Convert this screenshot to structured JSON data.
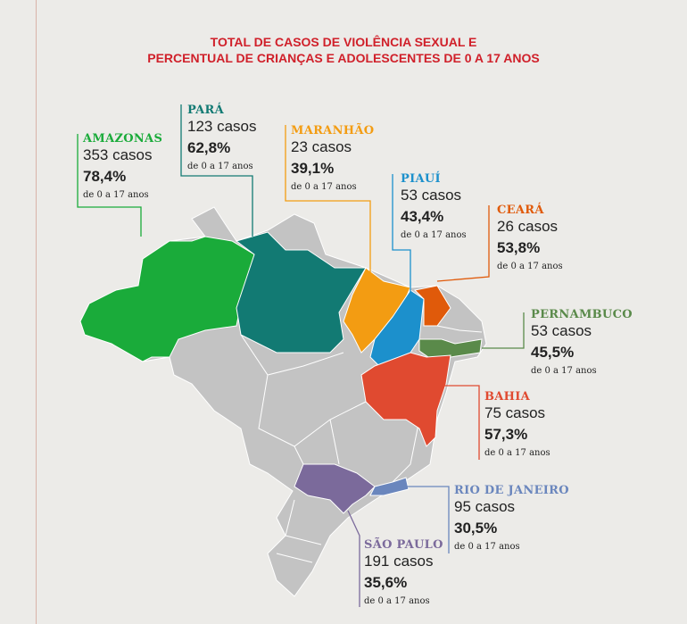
{
  "title": {
    "line1": "TOTAL DE CASOS DE VIOLÊNCIA SEXUAL E",
    "line2": "PERCENTUAL DE CRIANÇAS E ADOLESCENTES DE 0 A 17 ANOS"
  },
  "colors": {
    "title": "#d0202a",
    "other_states": "#c3c3c3",
    "background": "#ecebe8"
  },
  "states": [
    {
      "name": "AMAZONAS",
      "cases": "353 casos",
      "percent": "78,4%",
      "sub": "de 0 a 17 anos",
      "color": "#1aab3a"
    },
    {
      "name": "PARÁ",
      "cases": "123 casos",
      "percent": "62,8%",
      "sub": "de 0 a 17 anos",
      "color": "#127a73"
    },
    {
      "name": "MARANHÃO",
      "cases": "23 casos",
      "percent": "39,1%",
      "sub": "de 0 a 17 anos",
      "color": "#f39c12"
    },
    {
      "name": "PIAUÍ",
      "cases": "53 casos",
      "percent": "43,4%",
      "sub": "de 0 a 17 anos",
      "color": "#1c90cc"
    },
    {
      "name": "CEARÁ",
      "cases": "26 casos",
      "percent": "53,8%",
      "sub": "de 0 a 17 anos",
      "color": "#e05a0a"
    },
    {
      "name": "PERNAMBUCO",
      "cases": "53 casos",
      "percent": "45,5%",
      "sub": "de 0 a 17 anos",
      "color": "#5a8a4a"
    },
    {
      "name": "BAHIA",
      "cases": "75 casos",
      "percent": "57,3%",
      "sub": "de 0 a 17 anos",
      "color": "#e04a30"
    },
    {
      "name": "RIO DE JANEIRO",
      "cases": "95 casos",
      "percent": "30,5%",
      "sub": "de 0 a 17 anos",
      "color": "#6a86bd"
    },
    {
      "name": "SÃO PAULO",
      "cases": "191 casos",
      "percent": "35,6%",
      "sub": "de 0 a 17 anos",
      "color": "#7b6a9b"
    }
  ]
}
